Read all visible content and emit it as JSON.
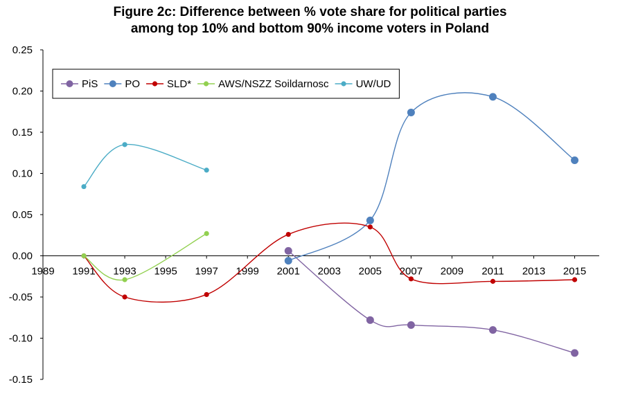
{
  "chart_data": {
    "type": "line",
    "title_lines": [
      "Figure 2c: Difference between % vote share for political parties",
      "among top 10% and bottom 90% income voters in Poland"
    ],
    "xlabel": "",
    "ylabel": "",
    "xlim": [
      1989,
      2016.2
    ],
    "ylim": [
      -0.15,
      0.25
    ],
    "x_ticks": [
      "1989",
      "1991",
      "1993",
      "1995",
      "1997",
      "1999",
      "2001",
      "2003",
      "2005",
      "2007",
      "2009",
      "2011",
      "2013",
      "2015"
    ],
    "y_ticks": [
      "0.25",
      "0.20",
      "0.15",
      "0.10",
      "0.05",
      "0.00",
      "-0.05",
      "-0.10",
      "-0.15"
    ],
    "legend_position": "top-left",
    "series": [
      {
        "name": "PiS",
        "color": "#8064A2",
        "marker": "large",
        "points": [
          [
            2001,
            0.006
          ],
          [
            2005,
            -0.078
          ],
          [
            2007,
            -0.084
          ],
          [
            2011,
            -0.09
          ],
          [
            2015,
            -0.118
          ]
        ]
      },
      {
        "name": "PO",
        "color": "#4F81BD",
        "marker": "large",
        "points": [
          [
            2001,
            -0.006
          ],
          [
            2005,
            0.043
          ],
          [
            2007,
            0.174
          ],
          [
            2011,
            0.193
          ],
          [
            2015,
            0.116
          ]
        ]
      },
      {
        "name": "SLD*",
        "color": "#C00000",
        "marker": "small",
        "points": [
          [
            1991,
            0.0
          ],
          [
            1993,
            -0.05
          ],
          [
            1997,
            -0.047
          ],
          [
            2001,
            0.026
          ],
          [
            2005,
            0.035
          ],
          [
            2007,
            -0.028
          ],
          [
            2011,
            -0.031
          ],
          [
            2015,
            -0.029
          ]
        ]
      },
      {
        "name": "AWS/NSZZ Soildarnosc",
        "color": "#92D050",
        "marker": "small",
        "points": [
          [
            1991,
            0.0
          ],
          [
            1993,
            -0.029
          ],
          [
            1997,
            0.027
          ]
        ]
      },
      {
        "name": "UW/UD",
        "color": "#4BACC6",
        "marker": "small",
        "points": [
          [
            1991,
            0.084
          ],
          [
            1993,
            0.135
          ],
          [
            1997,
            0.104
          ]
        ]
      }
    ]
  }
}
